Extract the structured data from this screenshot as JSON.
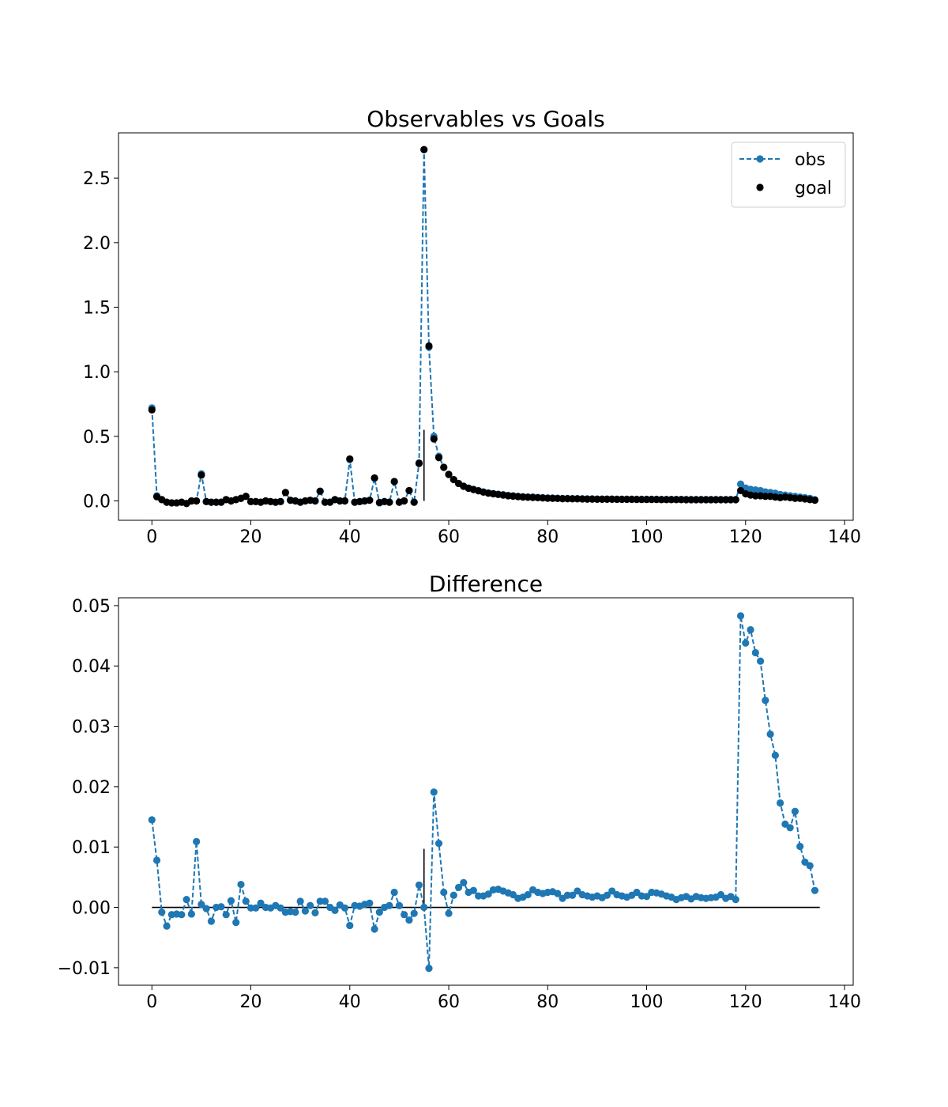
{
  "chart_data": [
    {
      "type": "line",
      "title": "Observables vs Goals",
      "xlabel": "",
      "ylabel": "",
      "xlim": [
        -6.75,
        141.75
      ],
      "ylim": [
        -0.15,
        2.85
      ],
      "xticks": [
        0,
        20,
        40,
        60,
        80,
        100,
        120,
        140
      ],
      "xtick_labels": [
        "0",
        "20",
        "40",
        "60",
        "80",
        "100",
        "120",
        "140"
      ],
      "yticks": [
        0.0,
        0.5,
        1.0,
        1.5,
        2.0,
        2.5
      ],
      "ytick_labels": [
        "0.0",
        "0.5",
        "1.0",
        "1.5",
        "2.0",
        "2.5"
      ],
      "grid": false,
      "legend": {
        "placement": "top-right",
        "entries": [
          "obs",
          "goal"
        ]
      },
      "vline": {
        "x": 55,
        "ymin": 0.0,
        "ymax": 0.55
      },
      "series": [
        {
          "name": "obs",
          "style": "dashed-line-with-dots",
          "color": "#1f77b4",
          "x": [
            0,
            1,
            2,
            3,
            4,
            5,
            6,
            7,
            8,
            9,
            10,
            11,
            12,
            13,
            14,
            15,
            16,
            17,
            18,
            19,
            20,
            21,
            22,
            23,
            24,
            25,
            26,
            27,
            28,
            29,
            30,
            31,
            32,
            33,
            34,
            35,
            36,
            37,
            38,
            39,
            40,
            41,
            42,
            43,
            44,
            45,
            46,
            47,
            48,
            49,
            50,
            51,
            52,
            53,
            54,
            55,
            56,
            57,
            58,
            59,
            60,
            61,
            62,
            63,
            64,
            65,
            66,
            67,
            68,
            69,
            70,
            71,
            72,
            73,
            74,
            75,
            76,
            77,
            78,
            79,
            80,
            81,
            82,
            83,
            84,
            85,
            86,
            87,
            88,
            89,
            90,
            91,
            92,
            93,
            94,
            95,
            96,
            97,
            98,
            99,
            100,
            101,
            102,
            103,
            104,
            105,
            106,
            107,
            108,
            109,
            110,
            111,
            112,
            113,
            114,
            115,
            116,
            117,
            118,
            119,
            120,
            121,
            122,
            123,
            124,
            125,
            126,
            127,
            128,
            129,
            130,
            131,
            132,
            133,
            134
          ],
          "y": [
            0.72,
            0.04,
            0.01,
            -0.01,
            -0.015,
            -0.015,
            -0.01,
            -0.02,
            0.0,
            0.0,
            0.21,
            -0.005,
            -0.01,
            -0.01,
            -0.01,
            0.01,
            0.0,
            0.01,
            0.02,
            0.035,
            -0.005,
            -0.005,
            -0.01,
            0.0,
            -0.005,
            -0.01,
            -0.005,
            0.065,
            0.005,
            0.0,
            -0.01,
            0.0,
            0.005,
            0.0,
            0.075,
            -0.01,
            -0.01,
            0.01,
            0.0,
            0.0,
            0.32,
            -0.01,
            -0.005,
            0.0,
            0.005,
            0.175,
            -0.015,
            -0.005,
            -0.01,
            0.15,
            -0.01,
            0.0,
            0.08,
            -0.01,
            0.295,
            2.72,
            1.19,
            0.5,
            0.345,
            0.26,
            0.205,
            0.165,
            0.135,
            0.115,
            0.1,
            0.09,
            0.08,
            0.07,
            0.062,
            0.057,
            0.052,
            0.048,
            0.043,
            0.04,
            0.036,
            0.033,
            0.031,
            0.03,
            0.027,
            0.025,
            0.023,
            0.022,
            0.021,
            0.019,
            0.019,
            0.018,
            0.018,
            0.017,
            0.016,
            0.016,
            0.015,
            0.015,
            0.015,
            0.015,
            0.014,
            0.014,
            0.014,
            0.014,
            0.013,
            0.013,
            0.013,
            0.013,
            0.013,
            0.012,
            0.012,
            0.012,
            0.012,
            0.012,
            0.011,
            0.011,
            0.011,
            0.011,
            0.011,
            0.011,
            0.011,
            0.011,
            0.011,
            0.011,
            0.011,
            0.13,
            0.1,
            0.09,
            0.085,
            0.08,
            0.07,
            0.065,
            0.06,
            0.05,
            0.045,
            0.04,
            0.035,
            0.03,
            0.025,
            0.02,
            0.01
          ]
        },
        {
          "name": "goal",
          "style": "dots",
          "color": "#000000",
          "x": [
            0,
            1,
            2,
            3,
            4,
            5,
            6,
            7,
            8,
            9,
            10,
            11,
            12,
            13,
            14,
            15,
            16,
            17,
            18,
            19,
            20,
            21,
            22,
            23,
            24,
            25,
            26,
            27,
            28,
            29,
            30,
            31,
            32,
            33,
            34,
            35,
            36,
            37,
            38,
            39,
            40,
            41,
            42,
            43,
            44,
            45,
            46,
            47,
            48,
            49,
            50,
            51,
            52,
            53,
            54,
            55,
            56,
            57,
            58,
            59,
            60,
            61,
            62,
            63,
            64,
            65,
            66,
            67,
            68,
            69,
            70,
            71,
            72,
            73,
            74,
            75,
            76,
            77,
            78,
            79,
            80,
            81,
            82,
            83,
            84,
            85,
            86,
            87,
            88,
            89,
            90,
            91,
            92,
            93,
            94,
            95,
            96,
            97,
            98,
            99,
            100,
            101,
            102,
            103,
            104,
            105,
            106,
            107,
            108,
            109,
            110,
            111,
            112,
            113,
            114,
            115,
            116,
            117,
            118,
            119,
            120,
            121,
            122,
            123,
            124,
            125,
            126,
            127,
            128,
            129,
            130,
            131,
            132,
            133,
            134
          ],
          "y": [
            0.705,
            0.032,
            0.01,
            -0.01,
            -0.015,
            -0.015,
            -0.01,
            -0.02,
            0.0,
            0.0,
            0.2,
            -0.005,
            -0.01,
            -0.01,
            -0.01,
            0.01,
            0.0,
            0.01,
            0.02,
            0.035,
            -0.005,
            -0.005,
            -0.01,
            0.0,
            -0.005,
            -0.01,
            -0.005,
            0.065,
            0.005,
            0.0,
            -0.01,
            0.0,
            0.005,
            0.0,
            0.075,
            -0.01,
            -0.01,
            0.01,
            0.0,
            0.0,
            0.325,
            -0.01,
            -0.005,
            0.0,
            0.005,
            0.178,
            -0.012,
            -0.005,
            -0.01,
            0.15,
            -0.01,
            0.0,
            0.08,
            -0.01,
            0.29,
            2.72,
            1.2,
            0.48,
            0.335,
            0.26,
            0.205,
            0.165,
            0.135,
            0.113,
            0.098,
            0.088,
            0.078,
            0.068,
            0.06,
            0.055,
            0.05,
            0.045,
            0.04,
            0.037,
            0.033,
            0.03,
            0.028,
            0.027,
            0.025,
            0.023,
            0.021,
            0.02,
            0.019,
            0.017,
            0.017,
            0.016,
            0.016,
            0.015,
            0.014,
            0.014,
            0.013,
            0.013,
            0.013,
            0.013,
            0.012,
            0.012,
            0.012,
            0.012,
            0.011,
            0.011,
            0.011,
            0.011,
            0.011,
            0.01,
            0.01,
            0.01,
            0.01,
            0.01,
            0.009,
            0.009,
            0.009,
            0.009,
            0.009,
            0.009,
            0.009,
            0.009,
            0.009,
            0.009,
            0.009,
            0.08,
            0.055,
            0.045,
            0.04,
            0.04,
            0.035,
            0.035,
            0.03,
            0.025,
            0.03,
            0.025,
            0.02,
            0.02,
            0.015,
            0.01,
            0.005
          ]
        }
      ]
    },
    {
      "type": "line",
      "title": "Difference",
      "xlabel": "",
      "ylabel": "",
      "xlim": [
        -6.75,
        141.75
      ],
      "ylim": [
        -0.0129,
        0.0513
      ],
      "xticks": [
        0,
        20,
        40,
        60,
        80,
        100,
        120,
        140
      ],
      "xtick_labels": [
        "0",
        "20",
        "40",
        "60",
        "80",
        "100",
        "120",
        "140"
      ],
      "yticks": [
        -0.01,
        0.0,
        0.01,
        0.02,
        0.03,
        0.04,
        0.05
      ],
      "ytick_labels": [
        "−0.01",
        "0.00",
        "0.01",
        "0.02",
        "0.03",
        "0.04",
        "0.05"
      ],
      "grid": false,
      "hline": {
        "y": 0.0,
        "xmin": 0,
        "xmax": 135
      },
      "vline": {
        "x": 55,
        "ymin": 0.0,
        "ymax": 0.0097
      },
      "series": [
        {
          "name": "",
          "style": "dashed-line-with-dots",
          "color": "#1f77b4",
          "x": [
            0,
            1,
            2,
            3,
            4,
            5,
            6,
            7,
            8,
            9,
            10,
            11,
            12,
            13,
            14,
            15,
            16,
            17,
            18,
            19,
            20,
            21,
            22,
            23,
            24,
            25,
            26,
            27,
            28,
            29,
            30,
            31,
            32,
            33,
            34,
            35,
            36,
            37,
            38,
            39,
            40,
            41,
            42,
            43,
            44,
            45,
            46,
            47,
            48,
            49,
            50,
            51,
            52,
            53,
            54,
            55,
            56,
            57,
            58,
            59,
            60,
            61,
            62,
            63,
            64,
            65,
            66,
            67,
            68,
            69,
            70,
            71,
            72,
            73,
            74,
            75,
            76,
            77,
            78,
            79,
            80,
            81,
            82,
            83,
            84,
            85,
            86,
            87,
            88,
            89,
            90,
            91,
            92,
            93,
            94,
            95,
            96,
            97,
            98,
            99,
            100,
            101,
            102,
            103,
            104,
            105,
            106,
            107,
            108,
            109,
            110,
            111,
            112,
            113,
            114,
            115,
            116,
            117,
            118,
            119,
            120,
            121,
            122,
            123,
            124,
            125,
            126,
            127,
            128,
            129,
            130,
            131,
            132,
            133,
            134
          ],
          "y": [
            0.0145,
            0.0078,
            -0.0008,
            -0.0031,
            -0.0012,
            -0.0011,
            -0.0012,
            0.0013,
            -0.0011,
            0.0109,
            0.0005,
            -0.0002,
            -0.0023,
            0.0,
            0.0001,
            -0.0012,
            0.0011,
            -0.0025,
            0.0038,
            0.001,
            -0.0001,
            -0.0001,
            0.0007,
            0.0,
            -0.0001,
            0.0003,
            -0.0001,
            -0.0008,
            -0.0007,
            -0.0008,
            0.001,
            -0.0006,
            0.0003,
            -0.0009,
            0.001,
            0.001,
            0.0,
            -0.0005,
            0.0004,
            -0.0001,
            -0.003,
            0.0003,
            0.0002,
            0.0005,
            0.0007,
            -0.0036,
            -0.0008,
            0.0,
            0.0003,
            0.0025,
            0.0003,
            -0.0012,
            -0.0021,
            -0.001,
            0.0037,
            0.0,
            -0.0101,
            0.0191,
            0.0106,
            0.0025,
            -0.001,
            0.002,
            0.0033,
            0.0041,
            0.0025,
            0.0028,
            0.0019,
            0.0019,
            0.0022,
            0.0029,
            0.003,
            0.0027,
            0.0024,
            0.0021,
            0.0015,
            0.0017,
            0.0021,
            0.0029,
            0.0025,
            0.0023,
            0.0025,
            0.0026,
            0.0023,
            0.0015,
            0.002,
            0.002,
            0.0027,
            0.0021,
            0.0019,
            0.0017,
            0.0019,
            0.0016,
            0.002,
            0.0027,
            0.0021,
            0.0019,
            0.0017,
            0.002,
            0.0025,
            0.0019,
            0.0018,
            0.0025,
            0.0024,
            0.0022,
            0.0019,
            0.0017,
            0.0013,
            0.0016,
            0.0018,
            0.0014,
            0.0018,
            0.0016,
            0.0015,
            0.0016,
            0.0017,
            0.0021,
            0.0015,
            0.0018,
            0.0013,
            0.0483,
            0.0438,
            0.046,
            0.0422,
            0.0408,
            0.0343,
            0.0287,
            0.0252,
            0.0173,
            0.0138,
            0.0132,
            0.0159,
            0.0101,
            0.0075,
            0.0069,
            0.0028
          ]
        }
      ]
    }
  ]
}
